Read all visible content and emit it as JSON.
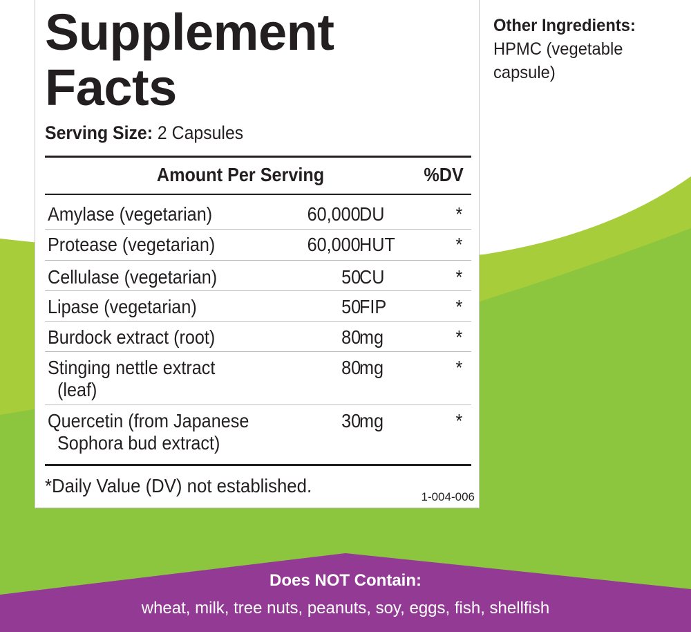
{
  "colors": {
    "green_light": "#a8cd3a",
    "green_dark": "#8cc63f",
    "purple": "#933a95"
  },
  "panel": {
    "title_line1": "Supplement",
    "title_line2": "Facts",
    "serving_label": "Serving Size:",
    "serving_value": "2 Capsules",
    "header_amount": "Amount Per Serving",
    "header_dv": "%DV",
    "rows": [
      {
        "name": "Amylase (vegetarian)",
        "amount": "60,000",
        "unit": "DU",
        "dv": "*"
      },
      {
        "name": "Protease (vegetarian)",
        "amount": "60,000",
        "unit": "HUT",
        "dv": "*"
      },
      {
        "name": "Cellulase (vegetarian)",
        "amount": "50",
        "unit": "CU",
        "dv": "*"
      },
      {
        "name": "Lipase (vegetarian)",
        "amount": "50",
        "unit": "FIP",
        "dv": "*"
      },
      {
        "name": "Burdock extract (root)",
        "amount": "80",
        "unit": "mg",
        "dv": "*"
      },
      {
        "name": "Stinging nettle extract",
        "name2": "(leaf)",
        "amount": "80",
        "unit": "mg",
        "dv": "*"
      },
      {
        "name": "Quercetin (from Japanese",
        "name2": "Sophora bud extract)",
        "amount": "30",
        "unit": "mg",
        "dv": "*"
      }
    ],
    "footnote": "*Daily Value (DV) not established.",
    "code": "1-004-006"
  },
  "other": {
    "label": "Other Ingredients:",
    "line1": "HPMC (vegetable",
    "line2": "capsule)"
  },
  "banner": {
    "title": "Does NOT Contain:",
    "text": "wheat, milk, tree nuts, peanuts, soy, eggs, fish, shellfish"
  }
}
